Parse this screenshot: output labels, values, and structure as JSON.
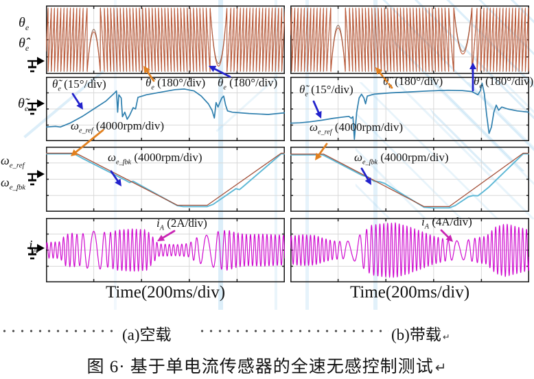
{
  "captions": {
    "a": "(a)空载",
    "b": "(b)带载",
    "main": "图 6· 基于单电流传感器的全速无感控制测试",
    "return_mark": "↵"
  },
  "axis": {
    "time_label_left": "Time(200ms/div)",
    "time_label_right": "Time(200ms/div)"
  },
  "side_labels": {
    "s1a": {
      "sym": "θ",
      "sub": "e"
    },
    "s1b": {
      "sym": "θ̂",
      "sub": "e"
    },
    "s2": {
      "sym": "θ̃",
      "sub": "e"
    },
    "s3a": {
      "sym": "ω",
      "sub": "e_ref"
    },
    "s3b": {
      "sym": "ω",
      "sub": "e_fbk"
    },
    "s4": {
      "sym": "i",
      "sub": "A"
    }
  },
  "annotations": {
    "al1": {
      "sym": "θ̃",
      "sub": "e",
      "rest": " (15°/div)"
    },
    "al2": {
      "sym": "θ̂",
      "sub": "e",
      "rest": " (180°/div)"
    },
    "al3": {
      "sym": "θ",
      "sub": "e",
      "rest": " (180°/div)"
    },
    "al4": {
      "sym": "ω",
      "sub": "e_ref",
      "rest": " (4000rpm/div)"
    },
    "al5": {
      "sym": "ω",
      "sub": "e_fbk",
      "rest": " (4000rpm/div)"
    },
    "al6": {
      "sym": "i",
      "sub": "A",
      "rest": " (2A/div)"
    },
    "ar1": {
      "sym": "θ̃",
      "sub": "e",
      "rest": " (15°/div)"
    },
    "ar2": {
      "sym": "θ̂",
      "sub": "e",
      "rest": " (180°/div)"
    },
    "ar3": {
      "sym": "θ",
      "sub": "e",
      "rest": " (180°/div)"
    },
    "ar4": {
      "sym": "ω",
      "sub": "e_ref",
      "rest": " (4000rpm/div)"
    },
    "ar5": {
      "sym": "ω",
      "sub": "e_fbk",
      "rest": " (4000rpm/div)"
    },
    "ar6": {
      "sym": "i",
      "sub": "A",
      "rest": " (4A/div)"
    }
  },
  "colors": {
    "theta": "#c05a38",
    "theta2": "#86604e",
    "err": "#2e7fae",
    "ref": "#a34f38",
    "fbk": "#5bb7d5",
    "cur": "#cf0acf",
    "orange": "#e2801e",
    "blue": "#2222cc",
    "magenta": "#c925b4",
    "grid": "#d8d8d8",
    "frame": "#1f1f1f"
  },
  "arrows": [
    {
      "from": [
        224,
        118
      ],
      "to": [
        209,
        96
      ],
      "color": "orange"
    },
    {
      "from": [
        335,
        112
      ],
      "to": [
        304,
        96
      ],
      "color": "blue"
    },
    {
      "from": [
        571,
        128
      ],
      "to": [
        547,
        98
      ],
      "color": "orange",
      "dashed": true
    },
    {
      "from": [
        689,
        132
      ],
      "to": [
        689,
        91
      ],
      "color": "blue"
    },
    {
      "from": [
        106,
        137
      ],
      "to": [
        121,
        160
      ],
      "color": "blue"
    },
    {
      "from": [
        457,
        148
      ],
      "to": [
        468,
        173
      ],
      "color": "blue"
    },
    {
      "from": [
        150,
        190
      ],
      "to": [
        103,
        228
      ],
      "color": "orange"
    },
    {
      "from": [
        162,
        250
      ],
      "to": [
        177,
        272
      ],
      "color": "blue"
    },
    {
      "from": [
        476,
        210
      ],
      "to": [
        459,
        234
      ],
      "color": "orange"
    },
    {
      "from": [
        527,
        246
      ],
      "to": [
        541,
        270
      ],
      "color": "blue"
    },
    {
      "from": [
        254,
        337
      ],
      "to": [
        229,
        352
      ],
      "color": "magenta"
    },
    {
      "from": [
        643,
        336
      ],
      "to": [
        660,
        353
      ],
      "color": "magenta"
    }
  ],
  "chart_data": [
    {
      "id": "a-angle",
      "type": "line",
      "series": [
        "θe",
        "θ̂e"
      ],
      "scale_per_div": "180°",
      "x_axis": "Time(200ms/div)",
      "x_divisions": 5,
      "y_divisions": 4,
      "grid": true,
      "wraps": 75,
      "phase": 0.3,
      "zero_speed_u": [
        0.2,
        0.72
      ],
      "profile": [
        [
          0,
          1
        ],
        [
          0.155,
          1
        ],
        [
          0.245,
          -1
        ],
        [
          0.67,
          -1
        ],
        [
          0.775,
          1
        ],
        [
          1,
          1
        ]
      ]
    },
    {
      "id": "a-err",
      "type": "line",
      "series": [
        "θ̃e"
      ],
      "scale_per_div": "15°",
      "points": [
        [
          0,
          0.78
        ],
        [
          0.04,
          0.77
        ],
        [
          0.06,
          0.78
        ],
        [
          0.1,
          0.72
        ],
        [
          0.15,
          0.62
        ],
        [
          0.2,
          0.5
        ],
        [
          0.25,
          0.38
        ],
        [
          0.285,
          0.26
        ],
        [
          0.295,
          0.22
        ],
        [
          0.3,
          0.55
        ],
        [
          0.305,
          0.28
        ],
        [
          0.315,
          0.33
        ],
        [
          0.32,
          0.62
        ],
        [
          0.33,
          0.55
        ],
        [
          0.34,
          0.66
        ],
        [
          0.35,
          0.6
        ],
        [
          0.365,
          0.48
        ],
        [
          0.375,
          0.5
        ],
        [
          0.385,
          0.32
        ],
        [
          0.42,
          0.28
        ],
        [
          0.48,
          0.24
        ],
        [
          0.54,
          0.2
        ],
        [
          0.58,
          0.19
        ],
        [
          0.62,
          0.22
        ],
        [
          0.65,
          0.3
        ],
        [
          0.68,
          0.42
        ],
        [
          0.695,
          0.52
        ],
        [
          0.705,
          0.64
        ],
        [
          0.712,
          0.4
        ],
        [
          0.72,
          0.47
        ],
        [
          0.728,
          0.4
        ],
        [
          0.736,
          0.33
        ],
        [
          0.744,
          0.3
        ],
        [
          0.752,
          0.44
        ],
        [
          0.76,
          0.53
        ],
        [
          0.78,
          0.55
        ],
        [
          0.85,
          0.57
        ],
        [
          0.93,
          0.585
        ],
        [
          1,
          0.56
        ]
      ]
    },
    {
      "id": "a-speed",
      "type": "line",
      "series": [
        "ωe_ref",
        "ωe_fbk"
      ],
      "scale_per_div": "4000rpm",
      "ref": [
        [
          0,
          0.1
        ],
        [
          0.125,
          0.1
        ],
        [
          0.55,
          0.9
        ],
        [
          0.675,
          0.9
        ],
        [
          0.985,
          0.1
        ],
        [
          1,
          0.1
        ]
      ],
      "fbk": [
        [
          0,
          0.11
        ],
        [
          0.118,
          0.11
        ],
        [
          0.15,
          0.175
        ],
        [
          0.335,
          0.52
        ],
        [
          0.35,
          0.55
        ],
        [
          0.365,
          0.53
        ],
        [
          0.55,
          0.905
        ],
        [
          0.575,
          0.92
        ],
        [
          0.675,
          0.92
        ],
        [
          0.7,
          0.885
        ],
        [
          0.795,
          0.645
        ],
        [
          0.81,
          0.66
        ],
        [
          0.825,
          0.615
        ],
        [
          0.985,
          0.11
        ],
        [
          1,
          0.11
        ]
      ]
    },
    {
      "id": "a-cur",
      "type": "line",
      "series": [
        "iA"
      ],
      "scale_per_div": "2A",
      "cycles": 58,
      "slow_u": [
        0.2,
        0.68
      ],
      "envelope": [
        [
          0,
          0.25
        ],
        [
          0.06,
          0.27
        ],
        [
          0.08,
          0.5
        ],
        [
          0.11,
          0.55
        ],
        [
          0.14,
          0.5
        ],
        [
          0.18,
          0.6
        ],
        [
          0.22,
          0.62
        ],
        [
          0.26,
          0.55
        ],
        [
          0.3,
          0.65
        ],
        [
          0.36,
          0.68
        ],
        [
          0.42,
          0.66
        ],
        [
          0.45,
          0.4
        ],
        [
          0.47,
          0.2
        ],
        [
          0.55,
          0.18
        ],
        [
          0.6,
          0.22
        ],
        [
          0.63,
          0.4
        ],
        [
          0.68,
          0.5
        ],
        [
          0.72,
          0.6
        ],
        [
          0.76,
          0.65
        ],
        [
          0.8,
          0.55
        ],
        [
          0.85,
          0.5
        ],
        [
          0.9,
          0.52
        ],
        [
          0.95,
          0.5
        ],
        [
          1,
          0.48
        ]
      ]
    },
    {
      "id": "b-angle",
      "type": "line",
      "series": [
        "θe",
        "θ̂e"
      ],
      "scale_per_div": "180°",
      "x_axis": "Time(200ms/div)",
      "x_divisions": 5,
      "y_divisions": 4,
      "grid": true,
      "wraps": 75,
      "phase": 0.55,
      "zero_speed_u": [
        0.2,
        0.72
      ],
      "profile": [
        [
          0,
          1
        ],
        [
          0.15,
          1
        ],
        [
          0.25,
          -1
        ],
        [
          0.645,
          -1
        ],
        [
          0.8,
          1
        ],
        [
          1,
          1
        ]
      ]
    },
    {
      "id": "b-err",
      "type": "line",
      "series": [
        "θ̃e"
      ],
      "scale_per_div": "15°",
      "points": [
        [
          0,
          0.72
        ],
        [
          0.04,
          0.715
        ],
        [
          0.08,
          0.7
        ],
        [
          0.13,
          0.675
        ],
        [
          0.18,
          0.645
        ],
        [
          0.22,
          0.625
        ],
        [
          0.245,
          0.615
        ],
        [
          0.255,
          0.645
        ],
        [
          0.262,
          0.62
        ],
        [
          0.268,
          0.97
        ],
        [
          0.278,
          0.55
        ],
        [
          0.288,
          0.33
        ],
        [
          0.298,
          0.27
        ],
        [
          0.308,
          0.33
        ],
        [
          0.315,
          0.42
        ],
        [
          0.322,
          0.3
        ],
        [
          0.35,
          0.27
        ],
        [
          0.42,
          0.25
        ],
        [
          0.5,
          0.235
        ],
        [
          0.58,
          0.22
        ],
        [
          0.66,
          0.21
        ],
        [
          0.72,
          0.215
        ],
        [
          0.76,
          0.23
        ],
        [
          0.785,
          0.28
        ],
        [
          0.795,
          0.22
        ],
        [
          0.803,
          0.1
        ],
        [
          0.812,
          0.26
        ],
        [
          0.822,
          0.6
        ],
        [
          0.832,
          0.88
        ],
        [
          0.842,
          0.78
        ],
        [
          0.852,
          0.55
        ],
        [
          0.862,
          0.44
        ],
        [
          0.872,
          0.52
        ],
        [
          0.885,
          0.47
        ],
        [
          0.91,
          0.5
        ],
        [
          0.95,
          0.53
        ],
        [
          1,
          0.55
        ]
      ]
    },
    {
      "id": "b-speed",
      "type": "line",
      "series": [
        "ωe_ref",
        "ωe_fbk"
      ],
      "scale_per_div": "4000rpm",
      "ref": [
        [
          0,
          0.115
        ],
        [
          0.14,
          0.115
        ],
        [
          0.56,
          0.92
        ],
        [
          0.665,
          0.92
        ],
        [
          0.975,
          0.1
        ],
        [
          1,
          0.1
        ]
      ],
      "fbk": [
        [
          0,
          0.125
        ],
        [
          0.135,
          0.125
        ],
        [
          0.175,
          0.2
        ],
        [
          0.3,
          0.44
        ],
        [
          0.325,
          0.465
        ],
        [
          0.35,
          0.53
        ],
        [
          0.375,
          0.54
        ],
        [
          0.395,
          0.565
        ],
        [
          0.56,
          0.93
        ],
        [
          0.595,
          0.94
        ],
        [
          0.665,
          0.94
        ],
        [
          0.69,
          0.905
        ],
        [
          0.745,
          0.77
        ],
        [
          0.765,
          0.75
        ],
        [
          0.785,
          0.755
        ],
        [
          0.805,
          0.7
        ],
        [
          0.83,
          0.625
        ],
        [
          0.975,
          0.11
        ],
        [
          1,
          0.11
        ]
      ]
    },
    {
      "id": "b-cur",
      "type": "line",
      "series": [
        "iA"
      ],
      "scale_per_div": "4A",
      "cycles": 62,
      "slow_u": [
        0.26,
        0.71
      ],
      "envelope": [
        [
          0,
          0.45
        ],
        [
          0.05,
          0.5
        ],
        [
          0.1,
          0.48
        ],
        [
          0.14,
          0.38
        ],
        [
          0.18,
          0.3
        ],
        [
          0.22,
          0.28
        ],
        [
          0.26,
          0.3
        ],
        [
          0.3,
          0.55
        ],
        [
          0.34,
          0.8
        ],
        [
          0.38,
          0.85
        ],
        [
          0.44,
          0.88
        ],
        [
          0.5,
          0.75
        ],
        [
          0.55,
          0.6
        ],
        [
          0.6,
          0.45
        ],
        [
          0.65,
          0.35
        ],
        [
          0.7,
          0.3
        ],
        [
          0.74,
          0.32
        ],
        [
          0.78,
          0.4
        ],
        [
          0.82,
          0.45
        ],
        [
          0.86,
          0.75
        ],
        [
          0.9,
          0.85
        ],
        [
          0.95,
          0.75
        ],
        [
          1,
          0.65
        ]
      ]
    }
  ]
}
